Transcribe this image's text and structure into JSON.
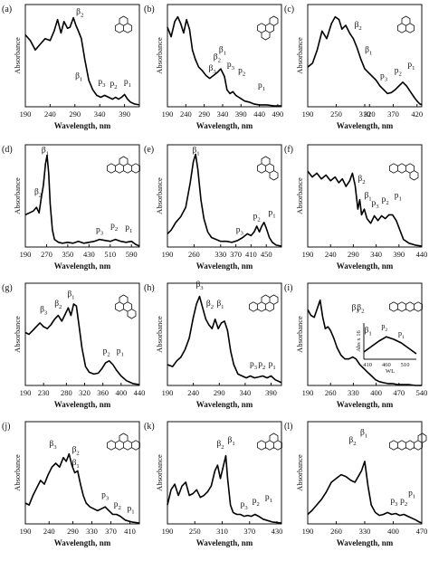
{
  "figure": {
    "ylabel": "Absorbance",
    "xlabel": "Wavelength, nm"
  },
  "chart_data": [
    {
      "type": "line",
      "panel": "(a)",
      "xlim": [
        190,
        420
      ],
      "xticks": [
        190,
        240,
        290,
        340,
        390
      ],
      "x": [
        190,
        200,
        210,
        220,
        230,
        240,
        248,
        255,
        262,
        268,
        275,
        280,
        287,
        292,
        297,
        303,
        310,
        318,
        326,
        334,
        342,
        350,
        358,
        366,
        372,
        378,
        384,
        390,
        396,
        402,
        410,
        420
      ],
      "y": [
        0.76,
        0.7,
        0.6,
        0.66,
        0.72,
        0.7,
        0.8,
        0.92,
        0.78,
        0.9,
        0.83,
        0.84,
        0.94,
        0.86,
        0.8,
        0.72,
        0.5,
        0.28,
        0.18,
        0.12,
        0.1,
        0.12,
        0.1,
        0.08,
        0.1,
        0.08,
        0.1,
        0.13,
        0.08,
        0.05,
        0.03,
        0.02
      ],
      "annotations": [
        "β2",
        "β1",
        "p3",
        "p2",
        "p1"
      ]
    },
    {
      "type": "line",
      "panel": "(b)",
      "xlim": [
        190,
        500
      ],
      "xticks": [
        190,
        240,
        290,
        340,
        390,
        440,
        490
      ],
      "x": [
        190,
        200,
        210,
        218,
        226,
        234,
        242,
        250,
        258,
        266,
        275,
        285,
        295,
        305,
        315,
        325,
        335,
        345,
        352,
        360,
        368,
        376,
        384,
        392,
        400,
        412,
        425,
        440,
        460,
        480,
        500
      ],
      "y": [
        0.84,
        0.74,
        0.9,
        0.95,
        0.88,
        0.78,
        0.92,
        0.82,
        0.6,
        0.5,
        0.42,
        0.38,
        0.33,
        0.3,
        0.33,
        0.36,
        0.4,
        0.32,
        0.18,
        0.14,
        0.16,
        0.12,
        0.1,
        0.08,
        0.06,
        0.05,
        0.03,
        0.02,
        0.02,
        0.01,
        0.01
      ],
      "annotations": [
        "β1",
        "β2",
        "β3",
        "p3",
        "p2",
        "p1"
      ]
    },
    {
      "type": "line",
      "panel": "(c)",
      "xlim": [
        190,
        430
      ],
      "xticks": [
        190,
        250,
        310,
        320,
        370,
        420
      ],
      "x": [
        190,
        200,
        210,
        220,
        230,
        240,
        248,
        256,
        262,
        270,
        278,
        286,
        294,
        302,
        310,
        318,
        326,
        334,
        342,
        350,
        358,
        366,
        374,
        382,
        390,
        398,
        406,
        414,
        420,
        426,
        430
      ],
      "y": [
        0.42,
        0.46,
        0.6,
        0.8,
        0.72,
        0.88,
        0.95,
        0.92,
        0.82,
        0.86,
        0.78,
        0.72,
        0.62,
        0.5,
        0.4,
        0.36,
        0.32,
        0.28,
        0.22,
        0.18,
        0.14,
        0.15,
        0.18,
        0.22,
        0.26,
        0.22,
        0.16,
        0.1,
        0.06,
        0.03,
        0.02
      ],
      "annotations": [
        "β2",
        "β1",
        "p3",
        "p2",
        "p1"
      ]
    },
    {
      "type": "line",
      "panel": "(d)",
      "xlim": [
        190,
        620
      ],
      "xticks": [
        190,
        270,
        350,
        430,
        510,
        590
      ],
      "x": [
        190,
        205,
        220,
        232,
        242,
        250,
        258,
        266,
        272,
        278,
        284,
        292,
        300,
        315,
        330,
        350,
        370,
        390,
        410,
        430,
        450,
        470,
        490,
        510,
        530,
        550,
        570,
        590,
        605,
        620
      ],
      "y": [
        0.34,
        0.36,
        0.38,
        0.42,
        0.36,
        0.52,
        0.65,
        0.88,
        0.97,
        0.78,
        0.45,
        0.18,
        0.08,
        0.05,
        0.04,
        0.05,
        0.04,
        0.06,
        0.04,
        0.05,
        0.06,
        0.08,
        0.07,
        0.06,
        0.08,
        0.06,
        0.05,
        0.06,
        0.03,
        0.01
      ],
      "annotations": [
        "β2",
        "β1",
        "p3",
        "p2",
        "p1"
      ]
    },
    {
      "type": "line",
      "panel": "(e)",
      "xlim": [
        190,
        490
      ],
      "xticks": [
        190,
        260,
        330,
        370,
        410,
        450
      ],
      "x": [
        190,
        200,
        212,
        225,
        238,
        250,
        258,
        264,
        270,
        278,
        286,
        296,
        306,
        318,
        330,
        345,
        360,
        375,
        388,
        400,
        410,
        418,
        425,
        432,
        438,
        444,
        450,
        458,
        466,
        476,
        490
      ],
      "y": [
        0.14,
        0.18,
        0.26,
        0.32,
        0.42,
        0.68,
        0.9,
        0.98,
        0.82,
        0.5,
        0.3,
        0.16,
        0.1,
        0.08,
        0.06,
        0.06,
        0.05,
        0.07,
        0.1,
        0.14,
        0.12,
        0.16,
        0.22,
        0.16,
        0.22,
        0.26,
        0.2,
        0.1,
        0.05,
        0.02,
        0.01
      ],
      "annotations": [
        "β1",
        "p3",
        "p2",
        "p1"
      ]
    },
    {
      "type": "line",
      "panel": "(f)",
      "xlim": [
        190,
        440
      ],
      "xticks": [
        190,
        240,
        290,
        340,
        390,
        440
      ],
      "x": [
        190,
        200,
        210,
        220,
        230,
        240,
        250,
        258,
        266,
        274,
        282,
        288,
        294,
        300,
        304,
        308,
        314,
        320,
        328,
        336,
        344,
        352,
        360,
        368,
        376,
        384,
        392,
        400,
        412,
        426,
        440
      ],
      "y": [
        0.8,
        0.74,
        0.78,
        0.72,
        0.76,
        0.7,
        0.74,
        0.68,
        0.72,
        0.64,
        0.7,
        0.78,
        0.65,
        0.4,
        0.5,
        0.34,
        0.4,
        0.3,
        0.25,
        0.33,
        0.28,
        0.33,
        0.3,
        0.34,
        0.34,
        0.28,
        0.18,
        0.08,
        0.04,
        0.02,
        0.01
      ],
      "annotations": [
        "β2",
        "β1",
        "p3",
        "p2",
        "p1"
      ]
    },
    {
      "type": "line",
      "panel": "(g)",
      "xlim": [
        190,
        440
      ],
      "xticks": [
        190,
        230,
        280,
        320,
        360,
        400,
        440
      ],
      "x": [
        190,
        198,
        206,
        214,
        222,
        230,
        238,
        246,
        254,
        262,
        270,
        278,
        284,
        290,
        296,
        302,
        308,
        314,
        322,
        330,
        340,
        350,
        358,
        366,
        374,
        382,
        390,
        400,
        412,
        426,
        440
      ],
      "y": [
        0.56,
        0.54,
        0.58,
        0.62,
        0.66,
        0.62,
        0.6,
        0.64,
        0.7,
        0.74,
        0.68,
        0.76,
        0.82,
        0.74,
        0.86,
        0.84,
        0.62,
        0.4,
        0.2,
        0.14,
        0.12,
        0.13,
        0.18,
        0.24,
        0.26,
        0.22,
        0.16,
        0.1,
        0.05,
        0.02,
        0.01
      ],
      "annotations": [
        "β3",
        "β2",
        "β1",
        "p2",
        "p1"
      ]
    },
    {
      "type": "line",
      "panel": "(h)",
      "xlim": [
        190,
        410
      ],
      "xticks": [
        190,
        240,
        290,
        340,
        390
      ],
      "x": [
        190,
        200,
        208,
        216,
        224,
        232,
        240,
        246,
        252,
        258,
        264,
        270,
        276,
        282,
        288,
        294,
        300,
        306,
        312,
        318,
        326,
        334,
        342,
        350,
        358,
        366,
        374,
        382,
        390,
        398,
        410
      ],
      "y": [
        0.22,
        0.2,
        0.26,
        0.3,
        0.38,
        0.5,
        0.72,
        0.86,
        0.94,
        0.82,
        0.7,
        0.64,
        0.6,
        0.7,
        0.6,
        0.66,
        0.68,
        0.58,
        0.36,
        0.22,
        0.12,
        0.1,
        0.08,
        0.1,
        0.08,
        0.09,
        0.1,
        0.08,
        0.1,
        0.06,
        0.03
      ],
      "annotations": [
        "β3",
        "β2",
        "β1",
        "p3",
        "p2",
        "p1"
      ]
    },
    {
      "type": "line",
      "panel": "(i)",
      "xlim": [
        190,
        540
      ],
      "xticks": [
        190,
        260,
        330,
        400,
        470,
        540
      ],
      "x": [
        190,
        200,
        210,
        220,
        228,
        236,
        244,
        252,
        260,
        270,
        280,
        292,
        304,
        316,
        328,
        338,
        350,
        362,
        374,
        386,
        398,
        410,
        422,
        436,
        450,
        466,
        482,
        500,
        520,
        540
      ],
      "y": [
        0.8,
        0.74,
        0.72,
        0.82,
        0.9,
        0.72,
        0.6,
        0.62,
        0.58,
        0.5,
        0.4,
        0.32,
        0.28,
        0.28,
        0.3,
        0.28,
        0.22,
        0.18,
        0.14,
        0.1,
        0.06,
        0.04,
        0.03,
        0.02,
        0.02,
        0.01,
        0.01,
        0.01,
        0.0,
        0.0
      ],
      "annotations": [
        "β3",
        "β2",
        "β1"
      ],
      "inset": {
        "ylabel": "Abs x 16",
        "xlabel": "WL",
        "xticks": [
          410,
          460,
          510
        ],
        "x": [
          400,
          420,
          440,
          460,
          480,
          500,
          520,
          540
        ],
        "y": [
          0.2,
          0.35,
          0.5,
          0.62,
          0.55,
          0.45,
          0.3,
          0.15
        ],
        "annotations": [
          "p2",
          "p1"
        ]
      }
    },
    {
      "type": "line",
      "panel": "(j)",
      "xlim": [
        190,
        430
      ],
      "xticks": [
        190,
        240,
        290,
        330,
        370,
        410
      ],
      "x": [
        190,
        198,
        206,
        214,
        222,
        230,
        238,
        246,
        254,
        262,
        270,
        276,
        282,
        288,
        294,
        300,
        306,
        312,
        318,
        326,
        334,
        342,
        350,
        358,
        366,
        374,
        382,
        390,
        400,
        414,
        430
      ],
      "y": [
        0.22,
        0.2,
        0.3,
        0.38,
        0.46,
        0.42,
        0.52,
        0.6,
        0.64,
        0.6,
        0.7,
        0.66,
        0.74,
        0.62,
        0.54,
        0.56,
        0.42,
        0.3,
        0.22,
        0.18,
        0.16,
        0.14,
        0.16,
        0.18,
        0.14,
        0.1,
        0.1,
        0.08,
        0.04,
        0.02,
        0.01
      ],
      "annotations": [
        "β3",
        "β2",
        "β1",
        "p3",
        "p2",
        "p1"
      ]
    },
    {
      "type": "line",
      "panel": "(k)",
      "xlim": [
        190,
        440
      ],
      "xticks": [
        190,
        250,
        310,
        370,
        430
      ],
      "x": [
        190,
        198,
        206,
        214,
        222,
        230,
        238,
        246,
        254,
        262,
        270,
        278,
        286,
        294,
        300,
        306,
        312,
        318,
        322,
        328,
        334,
        342,
        350,
        358,
        366,
        374,
        382,
        390,
        400,
        420,
        440
      ],
      "y": [
        0.2,
        0.36,
        0.42,
        0.3,
        0.4,
        0.44,
        0.3,
        0.32,
        0.36,
        0.28,
        0.3,
        0.34,
        0.4,
        0.56,
        0.62,
        0.48,
        0.6,
        0.72,
        0.48,
        0.2,
        0.12,
        0.1,
        0.1,
        0.08,
        0.09,
        0.08,
        0.1,
        0.08,
        0.05,
        0.02,
        0.01
      ],
      "annotations": [
        "β2",
        "β1",
        "p3",
        "p2",
        "p1"
      ]
    },
    {
      "type": "line",
      "panel": "(l)",
      "xlim": [
        190,
        470
      ],
      "xticks": [
        190,
        260,
        330,
        400,
        470
      ],
      "x": [
        190,
        200,
        212,
        224,
        236,
        248,
        260,
        272,
        284,
        296,
        306,
        314,
        322,
        330,
        338,
        346,
        356,
        366,
        376,
        386,
        396,
        406,
        416,
        426,
        436,
        446,
        456,
        464,
        470
      ],
      "y": [
        0.1,
        0.14,
        0.2,
        0.26,
        0.34,
        0.44,
        0.48,
        0.52,
        0.5,
        0.46,
        0.44,
        0.5,
        0.56,
        0.66,
        0.4,
        0.2,
        0.12,
        0.09,
        0.1,
        0.12,
        0.1,
        0.11,
        0.09,
        0.1,
        0.08,
        0.06,
        0.04,
        0.02,
        0.01
      ],
      "annotations": [
        "β2",
        "β1",
        "p3",
        "p2",
        "p1"
      ]
    }
  ]
}
